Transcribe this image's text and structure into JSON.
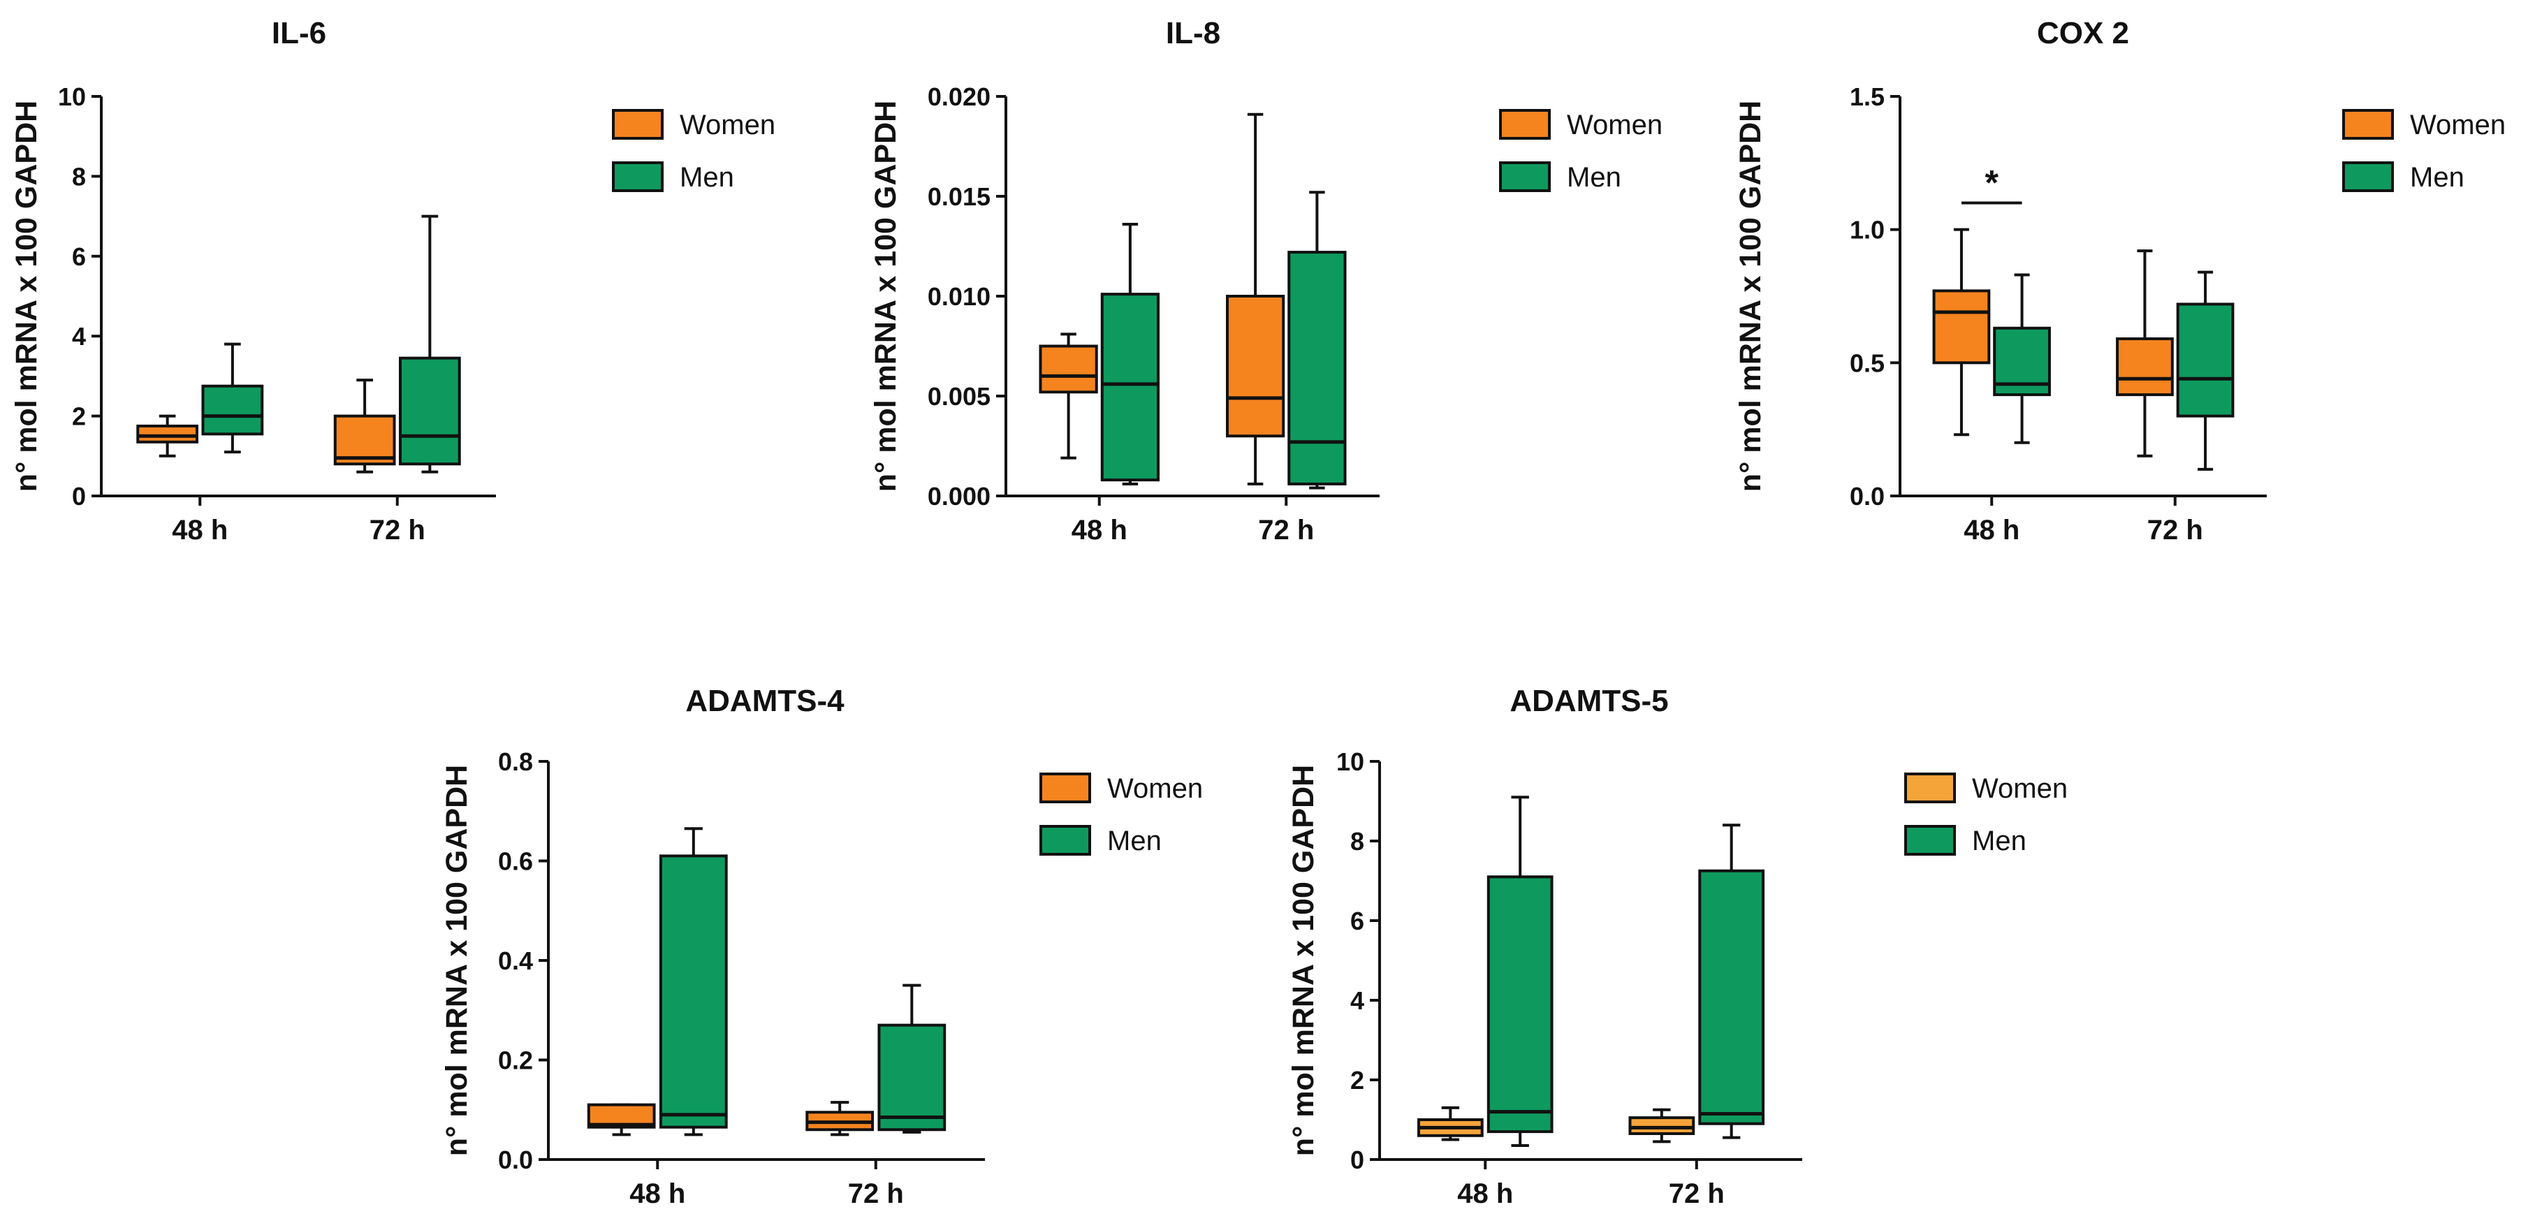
{
  "chart_data": [
    {
      "type": "box",
      "title": "IL-6",
      "xlabel": "",
      "ylabel": "n° mol mRNA x 100 GAPDH",
      "categories": [
        "48 h",
        "72 h"
      ],
      "ylim": [
        0,
        10
      ],
      "yticks": [
        "0",
        "2",
        "4",
        "6",
        "8",
        "10"
      ],
      "legend_position": "top-right",
      "series": [
        {
          "name": "Women",
          "color": "#F5841F",
          "boxes": [
            {
              "min": 1.0,
              "q1": 1.35,
              "median": 1.5,
              "q3": 1.75,
              "max": 2.0
            },
            {
              "min": 0.6,
              "q1": 0.8,
              "median": 0.95,
              "q3": 2.0,
              "max": 2.9
            }
          ]
        },
        {
          "name": "Men",
          "color": "#0E9A5E",
          "boxes": [
            {
              "min": 1.1,
              "q1": 1.55,
              "median": 2.0,
              "q3": 2.75,
              "max": 3.8
            },
            {
              "min": 0.6,
              "q1": 0.8,
              "median": 1.5,
              "q3": 3.45,
              "max": 7.0
            }
          ]
        }
      ],
      "annotations": []
    },
    {
      "type": "box",
      "title": "IL-8",
      "xlabel": "",
      "ylabel": "n° mol mRNA x 100 GAPDH",
      "categories": [
        "48 h",
        "72 h"
      ],
      "ylim": [
        0,
        0.02
      ],
      "yticks": [
        "0.000",
        "0.005",
        "0.010",
        "0.015",
        "0.020"
      ],
      "legend_position": "top-right",
      "series": [
        {
          "name": "Women",
          "color": "#F5841F",
          "boxes": [
            {
              "min": 0.0019,
              "q1": 0.0052,
              "median": 0.006,
              "q3": 0.0075,
              "max": 0.0081
            },
            {
              "min": 0.0006,
              "q1": 0.003,
              "median": 0.0049,
              "q3": 0.01,
              "max": 0.0191
            }
          ]
        },
        {
          "name": "Men",
          "color": "#0E9A5E",
          "boxes": [
            {
              "min": 0.0006,
              "q1": 0.0008,
              "median": 0.0056,
              "q3": 0.0101,
              "max": 0.0136
            },
            {
              "min": 0.0004,
              "q1": 0.0006,
              "median": 0.0027,
              "q3": 0.0122,
              "max": 0.0152
            }
          ]
        }
      ],
      "annotations": []
    },
    {
      "type": "box",
      "title": "COX 2",
      "xlabel": "",
      "ylabel": "n° mol mRNA x 100 GAPDH",
      "categories": [
        "48 h",
        "72 h"
      ],
      "ylim": [
        0,
        1.5
      ],
      "yticks": [
        "0.0",
        "0.5",
        "1.0",
        "1.5"
      ],
      "legend_position": "top-right",
      "series": [
        {
          "name": "Women",
          "color": "#F5841F",
          "boxes": [
            {
              "min": 0.23,
              "q1": 0.5,
              "median": 0.69,
              "q3": 0.77,
              "max": 1.0
            },
            {
              "min": 0.15,
              "q1": 0.38,
              "median": 0.44,
              "q3": 0.59,
              "max": 0.92
            }
          ]
        },
        {
          "name": "Men",
          "color": "#0E9A5E",
          "boxes": [
            {
              "min": 0.2,
              "q1": 0.38,
              "median": 0.42,
              "q3": 0.63,
              "max": 0.83
            },
            {
              "min": 0.1,
              "q1": 0.3,
              "median": 0.44,
              "q3": 0.72,
              "max": 0.84
            }
          ]
        }
      ],
      "annotations": [
        {
          "text": "*",
          "category": "48 h",
          "y": 1.1
        }
      ]
    },
    {
      "type": "box",
      "title": "ADAMTS-4",
      "xlabel": "",
      "ylabel": "n° mol mRNA x 100 GAPDH",
      "categories": [
        "48 h",
        "72 h"
      ],
      "ylim": [
        0,
        0.8
      ],
      "yticks": [
        "0.0",
        "0.2",
        "0.4",
        "0.6",
        "0.8"
      ],
      "legend_position": "top-right",
      "series": [
        {
          "name": "Women",
          "color": "#F5841F",
          "boxes": [
            {
              "min": 0.05,
              "q1": 0.065,
              "median": 0.07,
              "q3": 0.11,
              "max": 0.11
            },
            {
              "min": 0.05,
              "q1": 0.06,
              "median": 0.075,
              "q3": 0.095,
              "max": 0.115
            }
          ]
        },
        {
          "name": "Men",
          "color": "#0E9A5E",
          "boxes": [
            {
              "min": 0.05,
              "q1": 0.065,
              "median": 0.09,
              "q3": 0.61,
              "max": 0.665
            },
            {
              "min": 0.055,
              "q1": 0.06,
              "median": 0.085,
              "q3": 0.27,
              "max": 0.35
            }
          ]
        }
      ],
      "annotations": []
    },
    {
      "type": "box",
      "title": "ADAMTS-5",
      "xlabel": "",
      "ylabel": "n° mol mRNA x 100 GAPDH",
      "categories": [
        "48 h",
        "72 h"
      ],
      "ylim": [
        0,
        10
      ],
      "yticks": [
        "0",
        "2",
        "4",
        "6",
        "8",
        "10"
      ],
      "legend_position": "top-right",
      "series": [
        {
          "name": "Women",
          "color": "#F5A43A",
          "boxes": [
            {
              "min": 0.5,
              "q1": 0.6,
              "median": 0.8,
              "q3": 1.0,
              "max": 1.3
            },
            {
              "min": 0.45,
              "q1": 0.65,
              "median": 0.8,
              "q3": 1.05,
              "max": 1.25
            }
          ]
        },
        {
          "name": "Men",
          "color": "#0E9A5E",
          "boxes": [
            {
              "min": 0.35,
              "q1": 0.7,
              "median": 1.2,
              "q3": 7.1,
              "max": 9.1
            },
            {
              "min": 0.55,
              "q1": 0.9,
              "median": 1.15,
              "q3": 7.25,
              "max": 8.4
            }
          ]
        }
      ],
      "annotations": []
    }
  ]
}
